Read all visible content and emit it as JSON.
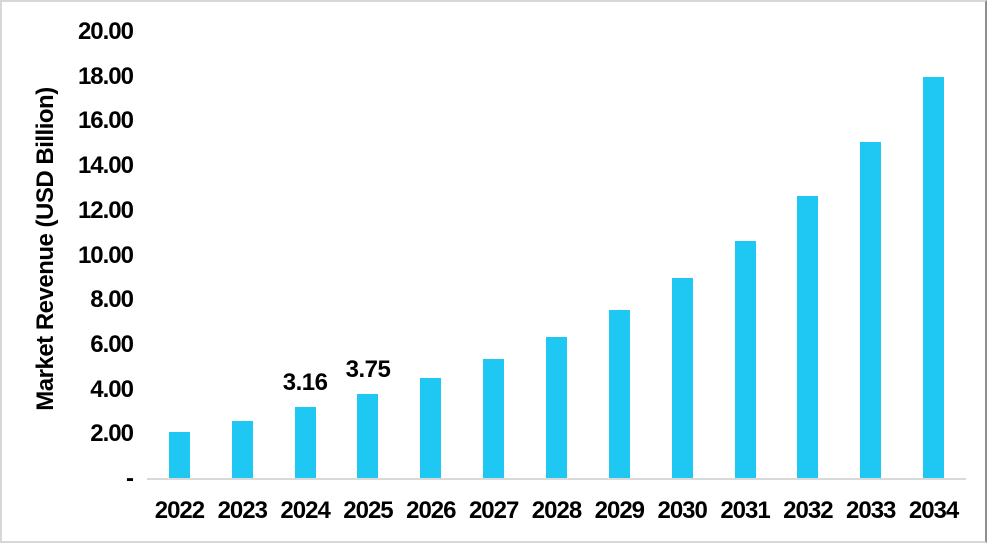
{
  "chart_data": {
    "type": "bar",
    "title": "",
    "xlabel": "",
    "ylabel": "Market Revenue (USD Billion)",
    "categories": [
      "2022",
      "2023",
      "2024",
      "2025",
      "2026",
      "2027",
      "2028",
      "2029",
      "2030",
      "2031",
      "2032",
      "2033",
      "2034"
    ],
    "values": [
      2.06,
      2.56,
      3.16,
      3.75,
      4.46,
      5.31,
      6.31,
      7.51,
      8.93,
      10.62,
      12.63,
      15.05,
      17.95
    ],
    "point_labels": [
      "",
      "",
      "3.16",
      "3.75",
      "",
      "",
      "",
      "",
      "",
      "",
      "",
      "",
      ""
    ],
    "ylim": [
      0,
      20
    ],
    "yticks": [
      {
        "value": 20,
        "label": "20.00"
      },
      {
        "value": 18,
        "label": "18.00"
      },
      {
        "value": 16,
        "label": "16.00"
      },
      {
        "value": 14,
        "label": "14.00"
      },
      {
        "value": 12,
        "label": "12.00"
      },
      {
        "value": 10,
        "label": "10.00"
      },
      {
        "value": 8,
        "label": "8.00"
      },
      {
        "value": 6,
        "label": "6.00"
      },
      {
        "value": 4,
        "label": "4.00"
      },
      {
        "value": 2,
        "label": "2.00"
      },
      {
        "value": 0,
        "label": "-"
      }
    ],
    "grid": false,
    "legend": "none",
    "bar_color": "#1ec8f2",
    "axis_line_color": "#d9d9d9",
    "text_color": "#000000"
  }
}
